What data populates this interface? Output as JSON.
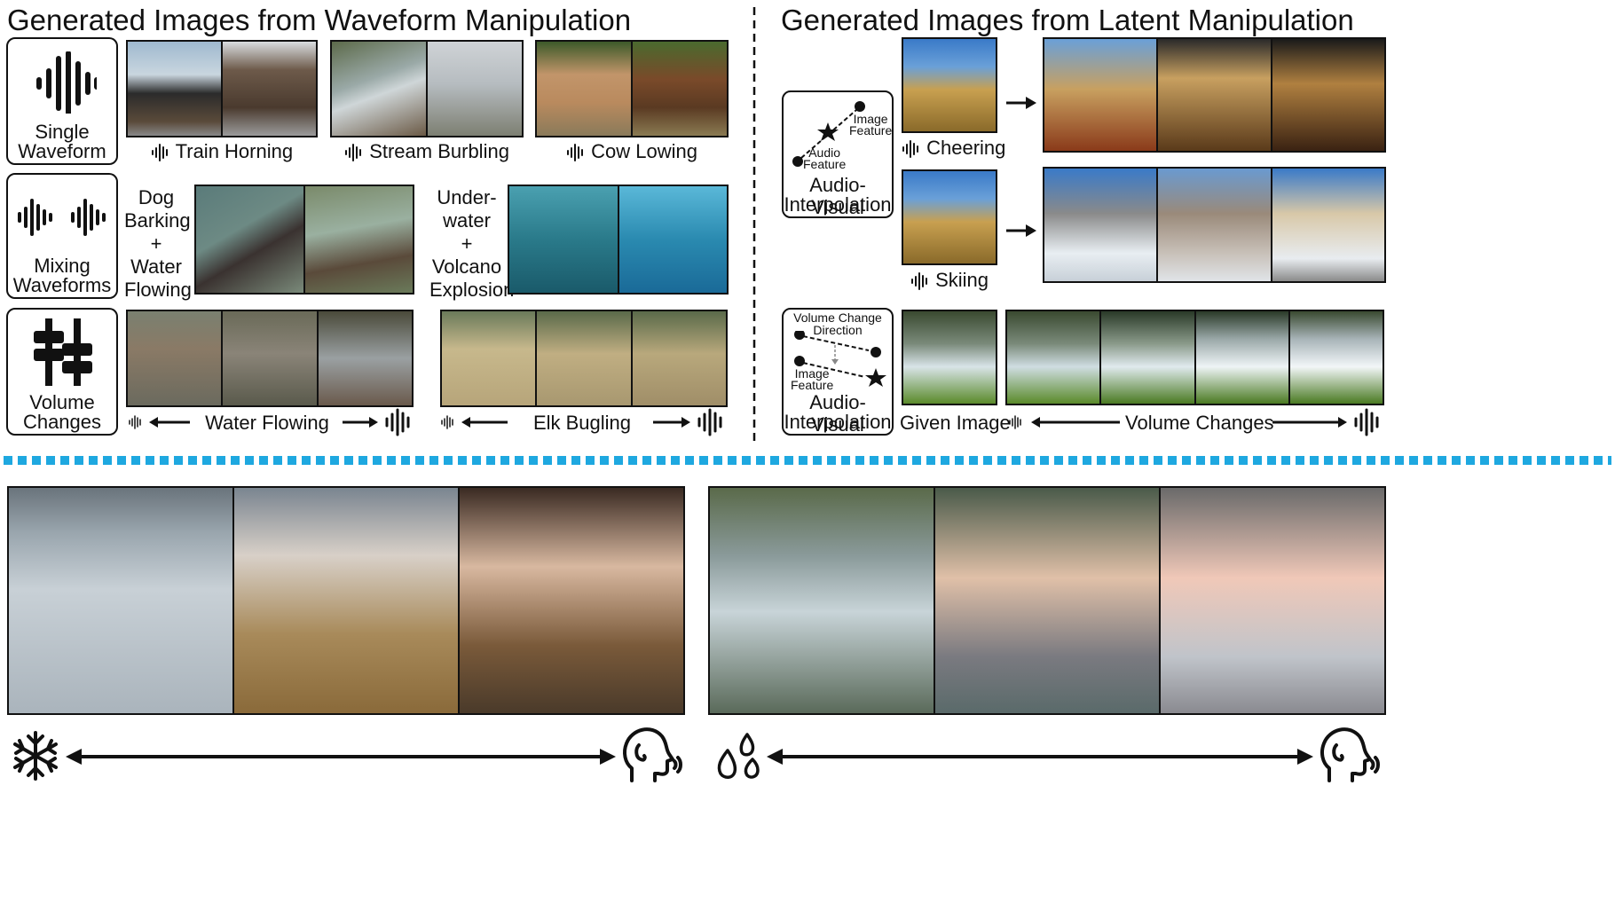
{
  "titles": {
    "left": "Generated Images from Waveform Manipulation",
    "right": "Generated Images from Latent Manipulation"
  },
  "waveform": {
    "row_labels": {
      "single": [
        "Single",
        "Waveform"
      ],
      "mixing": [
        "Mixing",
        "Waveforms"
      ],
      "volume": [
        "Volume",
        "Changes"
      ]
    },
    "single_captions": [
      "Train Horning",
      "Stream Burbling",
      "Cow Lowing"
    ],
    "mix1_label": [
      "Dog",
      "Barking",
      "+",
      "Water",
      "Flowing"
    ],
    "mix2_label": [
      "Under-",
      "water",
      "+",
      "Volcano",
      "Explosion"
    ],
    "volume_captions": [
      "Water Flowing",
      "Elk Bugling"
    ]
  },
  "latent": {
    "interp_box": {
      "image_feature": [
        "Image",
        "Feature"
      ],
      "audio_feature": [
        "Audio",
        "Feature"
      ],
      "label": [
        "Audio-Visual",
        "Interpolation"
      ]
    },
    "audio_captions": [
      "Cheering",
      "Skiing"
    ],
    "volume_box": {
      "direction": [
        "Volume Change",
        "Direction"
      ],
      "image_feature": [
        "Image",
        "Feature"
      ],
      "label": [
        "Audio-Visual",
        "Interpolation"
      ]
    },
    "given_image": "Given Image",
    "volume_caption": "Volume Changes"
  },
  "colors": {
    "divider": "#1ea8e0",
    "ink": "#111111"
  },
  "icons": [
    "waveform-icon",
    "volume-slider-icon",
    "snowflake-icon",
    "water-drops-icon",
    "speaking-head-icon",
    "star-icon"
  ]
}
